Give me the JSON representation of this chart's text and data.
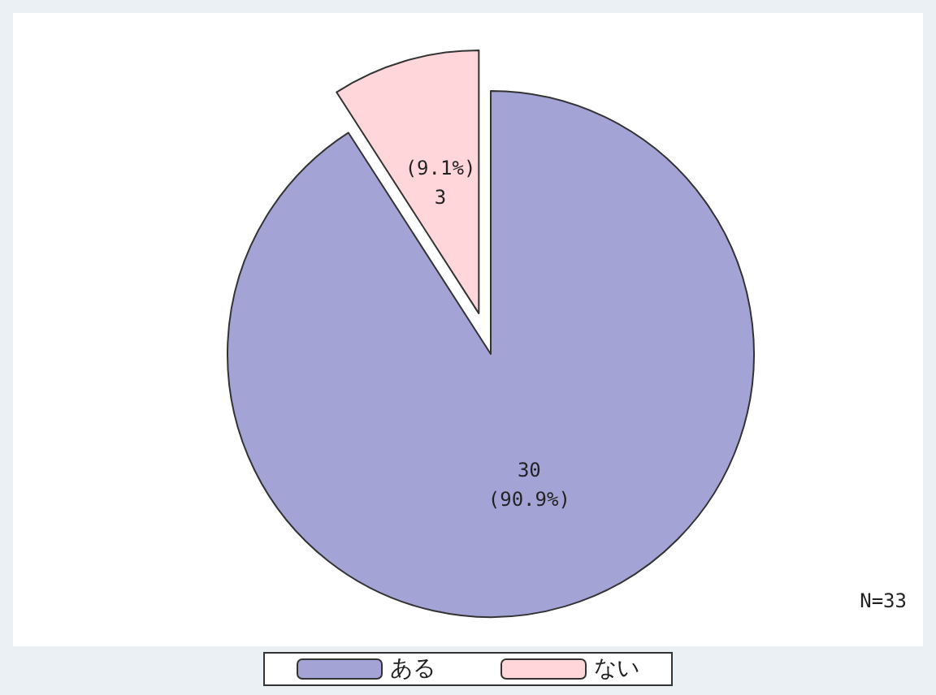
{
  "chart_data": {
    "type": "pie",
    "categories": [
      "ある",
      "ない"
    ],
    "values": [
      30,
      3
    ],
    "colors": [
      "#a3a3d6",
      "#ffd6d9"
    ],
    "value_labels": [
      "30\n(90.9%)",
      "(9.1%)\n3"
    ],
    "annotations": [
      "N=33"
    ],
    "legend": "bottom"
  }
}
